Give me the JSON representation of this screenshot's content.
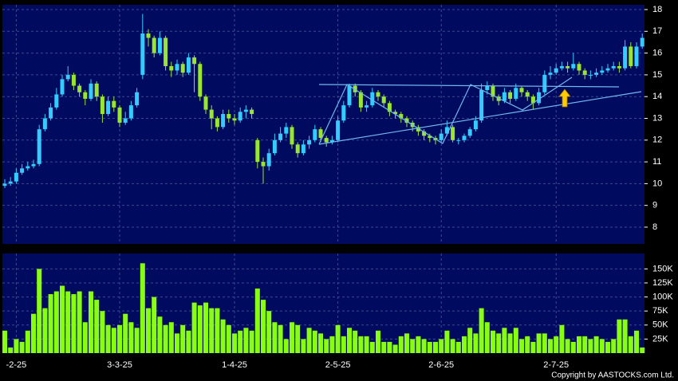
{
  "chart_data": [
    {
      "type": "candlestick",
      "up_color": "#33ccff",
      "down_color": "#99e62e",
      "grid": true,
      "categories": [
        null,
        null,
        "-2-25",
        null,
        null,
        null,
        null,
        null,
        null,
        null,
        null,
        null,
        null,
        null,
        null,
        null,
        null,
        null,
        null,
        null,
        "3-3-25",
        null,
        null,
        null,
        null,
        null,
        null,
        null,
        null,
        null,
        null,
        null,
        null,
        null,
        null,
        null,
        null,
        null,
        null,
        null,
        "1-4-25",
        null,
        null,
        null,
        null,
        null,
        null,
        null,
        null,
        null,
        null,
        null,
        null,
        null,
        null,
        null,
        null,
        null,
        "2-5-25",
        null,
        null,
        null,
        null,
        null,
        null,
        null,
        null,
        null,
        null,
        null,
        null,
        null,
        null,
        null,
        null,
        null,
        "2-6-25",
        null,
        null,
        null,
        null,
        null,
        null,
        null,
        null,
        null,
        null,
        null,
        null,
        null,
        null,
        null,
        null,
        null,
        null,
        null,
        "2-7-25",
        null,
        null,
        null,
        null,
        null,
        null,
        null,
        null,
        null,
        null,
        null,
        null,
        null,
        null,
        null
      ],
      "open": [
        9.9,
        10.0,
        10.1,
        10.5,
        10.7,
        10.8,
        10.9,
        12.5,
        13.0,
        13.5,
        14.1,
        14.8,
        15.0,
        14.5,
        14.2,
        13.9,
        14.6,
        14.0,
        13.2,
        13.8,
        13.5,
        12.8,
        13.0,
        13.6,
        15.0,
        16.9,
        16.7,
        16.0,
        16.7,
        15.4,
        15.2,
        15.5,
        15.1,
        15.8,
        15.5,
        14.0,
        13.4,
        13.0,
        12.6,
        13.2,
        13.0,
        12.9,
        13.3,
        13.4,
        12.0,
        11.0,
        10.8,
        11.4,
        12.0,
        12.3,
        12.6,
        11.8,
        11.4,
        11.8,
        12.0,
        12.5,
        12.1,
        11.9,
        12.0,
        12.9,
        13.6,
        14.5,
        14.2,
        13.5,
        13.6,
        14.2,
        14.0,
        13.7,
        13.3,
        13.2,
        13.0,
        12.8,
        12.6,
        12.4,
        12.2,
        12.1,
        12.0,
        12.3,
        12.6,
        12.0,
        12.0,
        12.2,
        12.5,
        12.9,
        14.3,
        14.5,
        14.0,
        13.8,
        14.2,
        13.9,
        14.4,
        14.2,
        14.0,
        13.7,
        14.2,
        15.0,
        15.1,
        15.3,
        15.4,
        15.3,
        15.5,
        15.2,
        15.0,
        15.0,
        15.1,
        15.2,
        15.3,
        15.4,
        15.3,
        16.3,
        15.4,
        16.3
      ],
      "high": [
        10.2,
        10.3,
        10.7,
        10.9,
        11.0,
        11.1,
        12.7,
        13.2,
        13.7,
        14.4,
        15.0,
        15.4,
        15.1,
        14.6,
        14.3,
        14.8,
        14.7,
        14.1,
        14.0,
        14.0,
        13.6,
        13.3,
        13.8,
        14.4,
        17.8,
        17.1,
        16.8,
        17.0,
        16.8,
        15.6,
        15.7,
        15.6,
        16.0,
        15.9,
        15.6,
        14.1,
        13.6,
        13.1,
        13.4,
        13.4,
        13.2,
        13.5,
        13.6,
        13.5,
        12.1,
        11.2,
        11.6,
        12.3,
        12.6,
        12.8,
        12.7,
        11.9,
        12.0,
        12.2,
        12.7,
        12.6,
        12.2,
        12.2,
        13.1,
        13.8,
        14.6,
        14.6,
        14.3,
        13.8,
        14.4,
        14.3,
        14.1,
        13.8,
        13.4,
        13.3,
        13.1,
        12.9,
        12.7,
        12.5,
        12.3,
        12.2,
        12.5,
        12.9,
        12.7,
        12.1,
        12.3,
        12.6,
        13.1,
        14.6,
        14.7,
        14.6,
        14.1,
        14.4,
        14.3,
        14.6,
        14.5,
        14.3,
        14.1,
        14.4,
        15.2,
        15.4,
        15.5,
        15.6,
        15.6,
        16.0,
        15.6,
        15.3,
        15.2,
        15.3,
        15.4,
        15.5,
        15.6,
        15.6,
        16.6,
        16.5,
        16.5,
        16.9
      ],
      "low": [
        9.8,
        9.9,
        10.0,
        10.4,
        10.6,
        10.7,
        10.8,
        12.4,
        12.9,
        13.4,
        14.0,
        14.7,
        14.3,
        14.0,
        13.6,
        13.8,
        13.8,
        12.8,
        13.1,
        13.3,
        12.6,
        12.7,
        12.9,
        13.5,
        14.8,
        16.3,
        15.8,
        15.9,
        15.2,
        14.9,
        15.0,
        14.9,
        15.0,
        14.2,
        13.8,
        13.2,
        12.5,
        12.4,
        12.5,
        12.8,
        12.7,
        12.8,
        13.0,
        13.0,
        10.7,
        10.0,
        10.6,
        11.3,
        11.9,
        12.1,
        11.6,
        11.2,
        11.3,
        11.6,
        11.9,
        11.9,
        11.7,
        11.8,
        11.9,
        12.8,
        13.5,
        14.0,
        13.3,
        13.3,
        13.5,
        13.8,
        13.5,
        13.1,
        13.0,
        12.8,
        12.6,
        12.4,
        12.2,
        12.0,
        11.9,
        11.8,
        11.9,
        12.2,
        11.9,
        11.8,
        11.9,
        12.1,
        12.4,
        12.8,
        14.1,
        13.8,
        13.6,
        13.7,
        13.7,
        13.8,
        14.0,
        13.8,
        13.4,
        13.6,
        14.1,
        14.8,
        15.0,
        15.2,
        15.1,
        15.2,
        15.0,
        14.8,
        14.8,
        14.9,
        15.0,
        15.1,
        15.2,
        15.1,
        15.2,
        15.3,
        15.3,
        16.2
      ],
      "close": [
        10.0,
        10.1,
        10.5,
        10.7,
        10.8,
        10.9,
        12.5,
        13.0,
        13.5,
        14.1,
        14.8,
        15.0,
        14.5,
        14.2,
        13.9,
        14.6,
        14.0,
        13.2,
        13.8,
        13.5,
        12.8,
        13.0,
        13.6,
        14.2,
        16.9,
        16.7,
        16.0,
        16.7,
        15.4,
        15.2,
        15.5,
        15.1,
        15.8,
        15.5,
        14.0,
        13.4,
        13.0,
        12.6,
        13.2,
        13.0,
        12.9,
        13.3,
        13.4,
        13.2,
        11.0,
        10.8,
        11.4,
        12.0,
        12.3,
        12.6,
        11.8,
        11.4,
        11.8,
        12.0,
        12.5,
        12.1,
        11.9,
        12.0,
        12.9,
        13.6,
        14.5,
        14.2,
        13.5,
        13.6,
        14.2,
        14.0,
        13.7,
        13.3,
        13.2,
        13.0,
        12.8,
        12.6,
        12.4,
        12.2,
        12.1,
        12.0,
        12.3,
        12.6,
        12.0,
        12.0,
        12.2,
        12.5,
        12.9,
        14.3,
        14.5,
        14.0,
        13.8,
        14.2,
        13.9,
        14.4,
        14.2,
        14.0,
        13.7,
        14.2,
        15.0,
        15.1,
        15.3,
        15.4,
        15.3,
        15.5,
        15.2,
        15.0,
        15.0,
        15.1,
        15.2,
        15.3,
        15.4,
        15.3,
        16.3,
        15.4,
        16.3,
        16.7
      ],
      "ylim": [
        7.23,
        18.22
      ],
      "yticks": [
        8,
        9,
        10,
        11,
        12,
        13,
        14,
        15,
        16,
        17,
        18
      ]
    },
    {
      "type": "bar",
      "color": "#88ff11",
      "grid": true,
      "values": [
        40000,
        10000,
        25000,
        20000,
        40000,
        70000,
        150000,
        80000,
        105000,
        110000,
        120000,
        110000,
        105000,
        110000,
        55000,
        110000,
        95000,
        75000,
        50000,
        45000,
        50000,
        70000,
        55000,
        45000,
        160000,
        80000,
        100000,
        65000,
        50000,
        55000,
        35000,
        50000,
        40000,
        90000,
        85000,
        90000,
        80000,
        80000,
        60000,
        50000,
        35000,
        40000,
        45000,
        40000,
        115000,
        95000,
        75000,
        55000,
        50000,
        25000,
        55000,
        50000,
        25000,
        45000,
        40000,
        35000,
        25000,
        30000,
        50000,
        30000,
        45000,
        40000,
        30000,
        30000,
        20000,
        40000,
        20000,
        20000,
        15000,
        30000,
        35000,
        25000,
        30000,
        25000,
        20000,
        20000,
        25000,
        40000,
        25000,
        20000,
        30000,
        45000,
        35000,
        80000,
        55000,
        40000,
        35000,
        45000,
        35000,
        45000,
        25000,
        30000,
        20000,
        35000,
        35000,
        25000,
        30000,
        50000,
        25000,
        20000,
        30000,
        30000,
        25000,
        30000,
        25000,
        20000,
        25000,
        60000,
        60000,
        30000,
        40000,
        10000
      ],
      "ylim": [
        0,
        177500
      ],
      "yticks": [
        {
          "value": 25000,
          "label": "25K"
        },
        {
          "value": 50000,
          "label": "50K"
        },
        {
          "value": 75000,
          "label": "75K"
        },
        {
          "value": 100000,
          "label": "100K"
        },
        {
          "value": 125000,
          "label": "125K"
        },
        {
          "value": 150000,
          "label": "150K"
        }
      ]
    }
  ],
  "copyright": "Copyright by AASTOCKS.com Ltd."
}
